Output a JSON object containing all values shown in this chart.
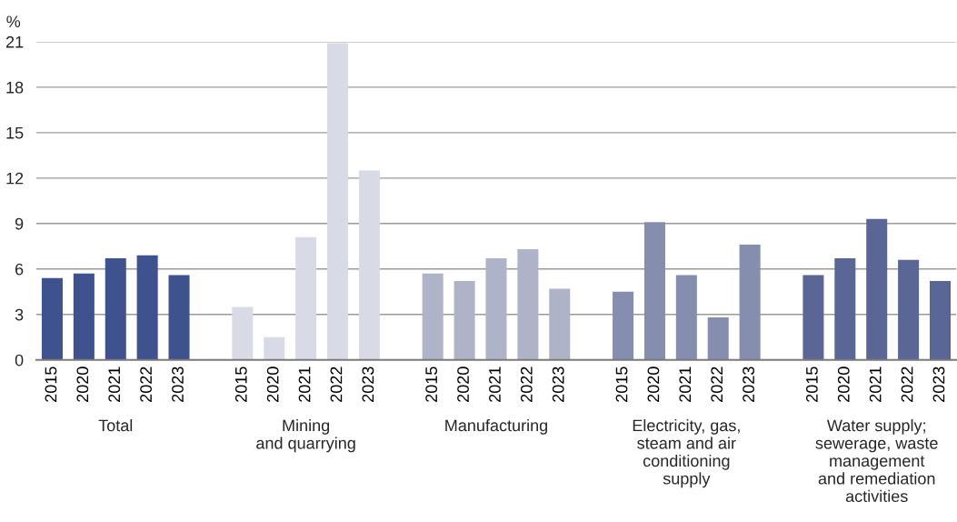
{
  "chart_data": {
    "type": "bar",
    "ylabel": "%",
    "categories": [
      "Total",
      "Mining\nand quarrying",
      "Manufacturing",
      "Electricity, gas,\nsteam and air\nconditioning\nsupply",
      "Water supply;\nsewerage, waste\nmanagement\nand remediation\nactivities"
    ],
    "series": [
      {
        "name": "2015",
        "colors": [
          "#3f5290",
          "#d8dbe5",
          "#aeb3c8",
          "#858eae",
          "#5a6796"
        ],
        "values": [
          5.4,
          3.5,
          5.7,
          4.5,
          5.6
        ]
      },
      {
        "name": "2020",
        "colors": [
          "#3f5290",
          "#d8dbe5",
          "#aeb3c8",
          "#858eae",
          "#5a6796"
        ],
        "values": [
          5.7,
          1.5,
          5.2,
          9.1,
          6.7
        ]
      },
      {
        "name": "2021",
        "colors": [
          "#3f5290",
          "#d8dbe5",
          "#aeb3c8",
          "#858eae",
          "#5a6796"
        ],
        "values": [
          6.7,
          8.1,
          6.7,
          5.6,
          9.3
        ]
      },
      {
        "name": "2022",
        "colors": [
          "#3f5290",
          "#d8dbe5",
          "#aeb3c8",
          "#858eae",
          "#5a6796"
        ],
        "values": [
          6.9,
          20.9,
          7.3,
          2.8,
          6.6
        ]
      },
      {
        "name": "2023",
        "colors": [
          "#3f5290",
          "#d8dbe5",
          "#aeb3c8",
          "#858eae",
          "#5a6796"
        ],
        "values": [
          5.6,
          12.5,
          4.7,
          7.6,
          5.2
        ]
      }
    ],
    "ylim": [
      0,
      21
    ],
    "yticks": [
      0,
      3,
      6,
      9,
      12,
      15,
      18,
      21
    ],
    "grid": "y"
  }
}
